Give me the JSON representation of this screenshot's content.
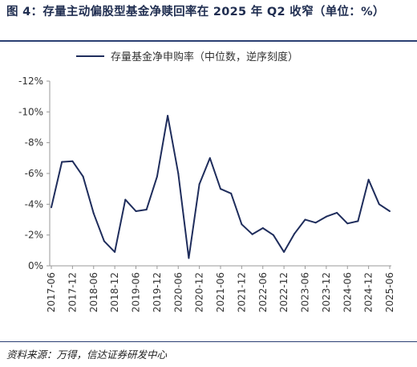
{
  "header": {
    "title": "图 4：存量主动偏股型基金净赎回率在 2025 年 Q2 收窄（单位：%）"
  },
  "footer": {
    "source": "资料来源：万得，信达证券研发中心"
  },
  "colors": {
    "line": "#1f2d5c",
    "rule": "#2b3f73",
    "axis": "#999999"
  },
  "chart_data": {
    "type": "line",
    "title": "",
    "xlabel": "",
    "ylabel": "",
    "ylim": [
      0,
      -12
    ],
    "y_ticks": [
      "-12%",
      "-10%",
      "-8%",
      "-6%",
      "-4%",
      "-2%",
      "0%"
    ],
    "y_tick_values": [
      -12,
      -10,
      -8,
      -6,
      -4,
      -2,
      0
    ],
    "x_tick_labels": [
      "2017-06",
      "2017-12",
      "2018-06",
      "2018-12",
      "2019-06",
      "2019-12",
      "2020-06",
      "2020-12",
      "2021-06",
      "2021-12",
      "2022-06",
      "2022-12",
      "2023-06",
      "2023-12",
      "2024-06",
      "2024-12",
      "2025-06"
    ],
    "legend": {
      "position": "top",
      "label": "存量基金净申购率（中位数，逆序刻度）"
    },
    "grid": false,
    "series": [
      {
        "name": "存量基金净申购率（中位数，逆序刻度）",
        "x": [
          "2017-06",
          "2017-09",
          "2017-12",
          "2018-03",
          "2018-06",
          "2018-09",
          "2018-12",
          "2019-03",
          "2019-06",
          "2019-09",
          "2019-12",
          "2020-03",
          "2020-06",
          "2020-09",
          "2020-12",
          "2021-03",
          "2021-06",
          "2021-09",
          "2021-12",
          "2022-03",
          "2022-06",
          "2022-09",
          "2022-12",
          "2023-03",
          "2023-06",
          "2023-09",
          "2023-12",
          "2024-03",
          "2024-06",
          "2024-09",
          "2024-12",
          "2025-03",
          "2025-06"
        ],
        "values": [
          -3.8,
          -6.75,
          -6.8,
          -5.8,
          -3.4,
          -1.6,
          -0.9,
          -4.3,
          -3.55,
          -3.65,
          -5.8,
          -9.75,
          -6.0,
          -0.5,
          -5.3,
          -7.0,
          -5.0,
          -4.7,
          -2.7,
          -2.05,
          -2.45,
          -2.0,
          -0.9,
          -2.1,
          -3.0,
          -2.8,
          -3.2,
          -3.45,
          -2.75,
          -2.9,
          -5.6,
          -4.0,
          -3.55
        ]
      }
    ]
  }
}
